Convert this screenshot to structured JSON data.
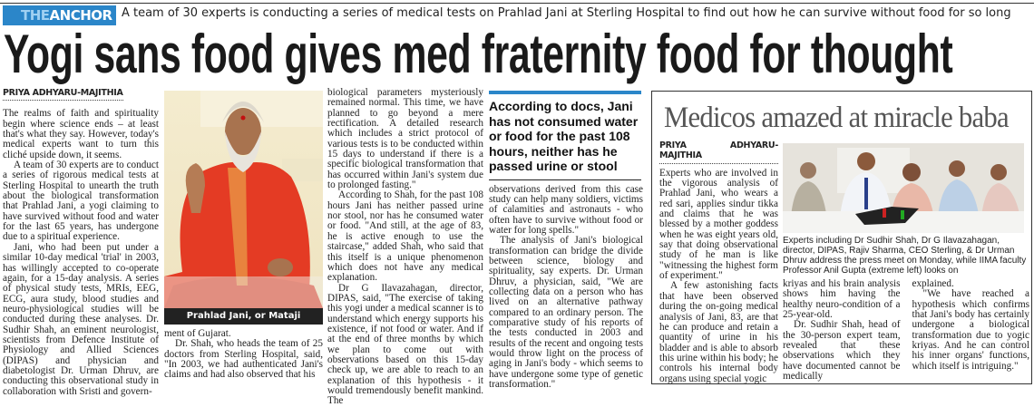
{
  "header": {
    "section_the": "THE",
    "section_anchor": "ANCHOR",
    "kicker": "A team of 30 experts is conducting a series of medical tests on Prahlad Jani at Sterling Hospital to find out how he can survive without food for so long",
    "headline": "Yogi sans food gives med fraternity food for thought",
    "accent_color": "#2b86c9"
  },
  "main_story": {
    "byline": "PRIYA ADHYARU-MAJITHIA",
    "col1": [
      "The realms of faith and spirituality begin where science ends – at least that's what they say. However, today's medical experts want to turn this cliché upside down, it seems.",
      "A team of 30 experts are to conduct a series of rigorous medical tests at Sterling Hospital to unearth the truth about the biological transformation that Prahlad Jani, a yogi claiming to have survived without food and water for the last 65 years, has undergone due to a spiritual experience.",
      "Jani, who had been put under a similar 10-day medical 'trial' in 2003, has willingly accepted to co-operate again, for a 15-day analysis. A series of physical study tests, MRIs, EEG, ECG, aura study, blood studies and neuro-physiological studies will be conducted during these analyses. Dr. Sudhir Shah, an eminent neurologist, scientists from Defence Institute of Physiology and Allied Sciences (DIPAS) and physician and diabetologist Dr. Urman Dhruv, are conducting this observational study in collaboration with Sristi and govern-"
    ],
    "photo_caption": "Prahlad Jani, or Mataji",
    "col2": [
      "ment of Gujarat.",
      "Dr. Shah, who heads the team of 25 doctors from Sterling Hospital, said, \"In 2003, we had authenticated Jani's claims and had also observed that his"
    ],
    "col3": [
      "biological parameters mysteriously remained normal. This time, we have planned to go beyond a mere rectification. A detailed research which includes a strict protocol of various tests is to be conducted within 15 days to understand if there is a specific biological transformation that has occurred within Jani's system due to prolonged fasting.\"",
      "According to Shah, for the past 108 hours Jani has neither passed urine nor stool, nor has he consumed water or food. \"And still, at the age of 83, he is active enough to use the staircase,\" added Shah, who said that this itself is a unique phenomenon which does not have any medical explanation.",
      "Dr G Ilavazahagan, director, DIPAS, said, \"The exercise of taking this yogi under a medical scanner is to understand which energy supports his existence, if not food or water. And if at the end of three months by which we plan to come out with observations based on this 15-day check up, we are able to reach to an explanation of this hypothesis - it would tremendously benefit mankind. The"
    ],
    "pull_quote": "According to docs, Jani has not consumed water or food for the past 108 hours, neither has he passed urine or stool",
    "col4": [
      "observations derived from this case study can help many soldiers, victims of calamities and astronauts - who often have to survive without food or water for long spells.\"",
      "The analysis of Jani's biological transformation can bridge the divide between science, biology and spirituality, say experts. Dr. Urman Dhruv, a physician, said, \"We are collecting data on a person who has lived on an alternative pathway compared to an ordinary person. The comparative study of his reports of the tests conducted in 2003 and results of the recent and ongoing tests would throw light on the process of aging in Jani's body - which seems to have undergone some type of genetic transformation.\""
    ]
  },
  "sidebar_story": {
    "title": "Medicos amazed at miracle baba",
    "byline": "PRIYA ADHYARU-MAJITHIA",
    "col1": [
      "Experts who are involved in the vigorous analysis of Prahlad Jani, who wears a red sari, applies sindur tikka and claims that he was blessed by a mother goddess when he was eight years old, say that doing observational study of he man is like \"witnessing the highest form of experiment.\"",
      "A few astonishing facts that have been observed during the on-going medical analysis of Jani, 83, are that he can produce and retain a quantity of urine in his bladder and is able to absorb this urine within his body; he controls his internal body organs using special yogic"
    ],
    "photo_caption": "Experts including Dr Sudhir Shah, Dr G Ilavazahagan, director, DIPAS, Rajiv Sharma, CEO Sterling, & Dr Urman Dhruv address the press meet on Monday, while IIMA faculty Professor Anil Gupta (extreme left) looks on",
    "col2": [
      "kriyas and his brain analysis shows him having the healthy neuro-condition of a 25-year-old.",
      "Dr. Sudhir Shah, head of the 30-person expert team, revealed that these observations which they have documented cannot be medically"
    ],
    "col3": [
      "explained.",
      "\"We have reached a hypothesis which confirms that Jani's body has certainly undergone a biological transformation due to yogic kriyas. And he can control his inner organs' functions, which itself is intriguing.\""
    ]
  }
}
